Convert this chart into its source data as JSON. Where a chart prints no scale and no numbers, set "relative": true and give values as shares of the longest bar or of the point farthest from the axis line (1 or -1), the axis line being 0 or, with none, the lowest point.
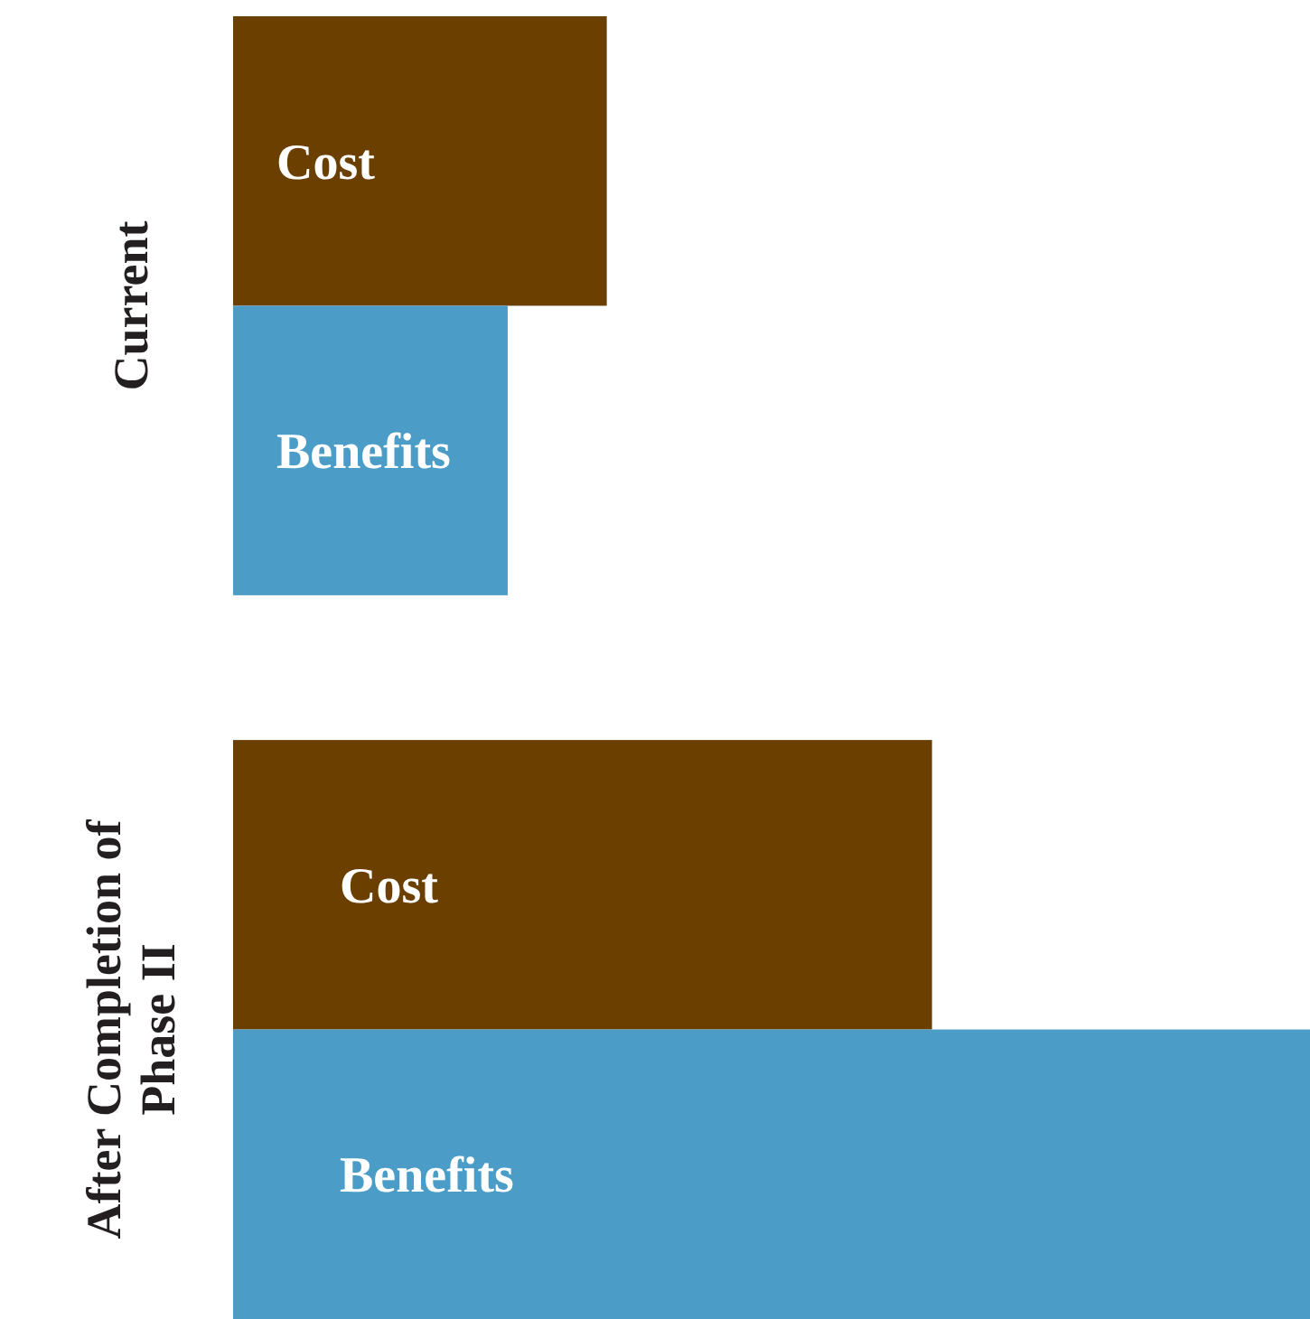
{
  "chart_data": {
    "type": "bar",
    "orientation": "horizontal",
    "relative": true,
    "categories": [
      "Current",
      "After Completion of Phase II"
    ],
    "series": [
      {
        "name": "Cost",
        "color": "#6b3f00",
        "values": [
          0.347,
          0.649
        ]
      },
      {
        "name": "Benefits",
        "color": "#4b9dc8",
        "values": [
          0.255,
          1
        ]
      }
    ]
  }
}
